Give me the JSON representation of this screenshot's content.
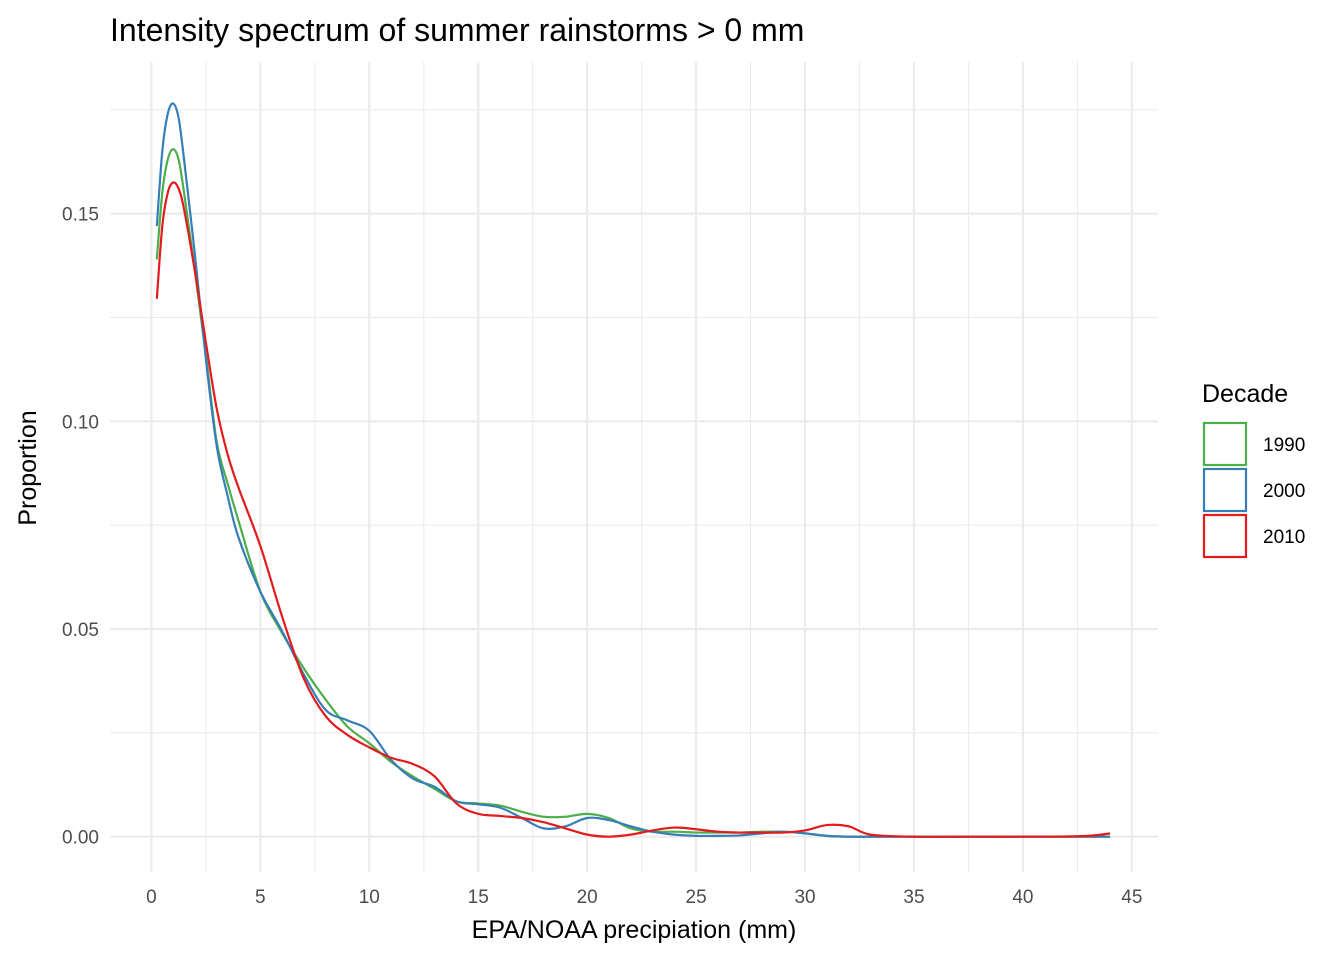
{
  "chart_data": {
    "type": "line",
    "title": "Intensity spectrum of summer rainstorms > 0 mm",
    "xlabel": "EPA/NOAA precipiation (mm)",
    "ylabel": "Proportion",
    "xlim": [
      -1.9,
      46.2
    ],
    "ylim": [
      -0.0085,
      0.1865
    ],
    "x_ticks": [
      0,
      5,
      10,
      15,
      20,
      25,
      30,
      35,
      40,
      45
    ],
    "x_tick_labels": [
      "0",
      "5",
      "10",
      "15",
      "20",
      "25",
      "30",
      "35",
      "40",
      "45"
    ],
    "x_minor_ticks": [
      2.5,
      7.5,
      12.5,
      17.5,
      22.5,
      27.5,
      32.5,
      37.5,
      42.5
    ],
    "y_ticks": [
      0.0,
      0.05,
      0.1,
      0.15
    ],
    "y_tick_labels": [
      "0.00",
      "0.05",
      "0.10",
      "0.15"
    ],
    "y_minor_ticks": [
      0.025,
      0.075,
      0.125,
      0.175
    ],
    "grid": true,
    "legend": {
      "title": "Decade",
      "position": "right"
    },
    "series": [
      {
        "name": "1990",
        "color": "#4DAF4A",
        "x": [
          0.25,
          0.5,
          0.75,
          1.0,
          1.25,
          1.5,
          2.0,
          2.5,
          3.0,
          3.5,
          4.0,
          5.0,
          6.0,
          7.0,
          8.0,
          9.0,
          10.0,
          11.0,
          12.0,
          13.0,
          14.0,
          15.0,
          16.0,
          17.0,
          18.0,
          19.0,
          20.0,
          21.0,
          22.0,
          23.0,
          24.0,
          25.0,
          26.0,
          27.0,
          28.0,
          29.0,
          30.0,
          31.0,
          32.0,
          33.0,
          35.0,
          38.0,
          41.0,
          44.0
        ],
        "y": [
          0.139,
          0.155,
          0.163,
          0.1655,
          0.163,
          0.155,
          0.136,
          0.116,
          0.095,
          0.085,
          0.076,
          0.059,
          0.049,
          0.0405,
          0.033,
          0.0265,
          0.0225,
          0.018,
          0.0145,
          0.0115,
          0.0085,
          0.008,
          0.0075,
          0.006,
          0.0048,
          0.0048,
          0.0055,
          0.0045,
          0.002,
          0.0012,
          0.0012,
          0.001,
          0.001,
          0.001,
          0.0012,
          0.0012,
          0.0008,
          0.0002,
          0.0,
          0.0,
          0.0,
          0.0,
          0.0,
          0.0
        ]
      },
      {
        "name": "2000",
        "color": "#377EB8",
        "x": [
          0.25,
          0.5,
          0.75,
          1.0,
          1.25,
          1.5,
          2.0,
          2.5,
          3.0,
          3.5,
          4.0,
          5.0,
          6.0,
          7.0,
          8.0,
          9.0,
          10.0,
          11.0,
          12.0,
          13.0,
          14.0,
          15.0,
          16.0,
          17.0,
          18.0,
          19.0,
          20.0,
          21.0,
          22.0,
          23.0,
          24.0,
          25.0,
          26.0,
          27.0,
          28.0,
          29.0,
          30.0,
          31.0,
          32.0,
          33.0,
          35.0,
          38.0,
          41.0,
          44.0
        ],
        "y": [
          0.147,
          0.165,
          0.174,
          0.1765,
          0.173,
          0.163,
          0.14,
          0.115,
          0.094,
          0.082,
          0.072,
          0.059,
          0.0495,
          0.039,
          0.0305,
          0.028,
          0.0255,
          0.0185,
          0.014,
          0.012,
          0.0085,
          0.0078,
          0.007,
          0.0045,
          0.002,
          0.0025,
          0.0045,
          0.004,
          0.0025,
          0.0012,
          0.0005,
          0.0002,
          0.0002,
          0.0003,
          0.0008,
          0.0012,
          0.0008,
          0.0002,
          0.0,
          0.0,
          0.0,
          0.0,
          0.0,
          0.0
        ]
      },
      {
        "name": "2010",
        "color": "#E41A1C",
        "x": [
          0.25,
          0.5,
          0.75,
          1.0,
          1.25,
          1.5,
          2.0,
          2.5,
          3.0,
          3.5,
          4.0,
          5.0,
          6.0,
          7.0,
          8.0,
          9.0,
          10.0,
          11.0,
          12.0,
          13.0,
          14.0,
          15.0,
          16.0,
          17.0,
          18.0,
          19.0,
          20.0,
          21.0,
          22.0,
          23.0,
          24.0,
          25.0,
          26.0,
          27.0,
          28.0,
          29.0,
          30.0,
          31.0,
          32.0,
          33.0,
          35.0,
          38.0,
          41.0,
          43.0,
          44.0
        ],
        "y": [
          0.1295,
          0.147,
          0.155,
          0.1575,
          0.156,
          0.151,
          0.136,
          0.119,
          0.103,
          0.092,
          0.084,
          0.07,
          0.053,
          0.038,
          0.029,
          0.0245,
          0.0215,
          0.019,
          0.0175,
          0.0145,
          0.008,
          0.0055,
          0.005,
          0.0045,
          0.0035,
          0.002,
          0.0005,
          0.0,
          0.0005,
          0.0015,
          0.0022,
          0.0018,
          0.0012,
          0.001,
          0.001,
          0.001,
          0.0015,
          0.0028,
          0.0025,
          0.0005,
          0.0,
          0.0,
          0.0,
          0.0002,
          0.0008
        ]
      }
    ]
  }
}
